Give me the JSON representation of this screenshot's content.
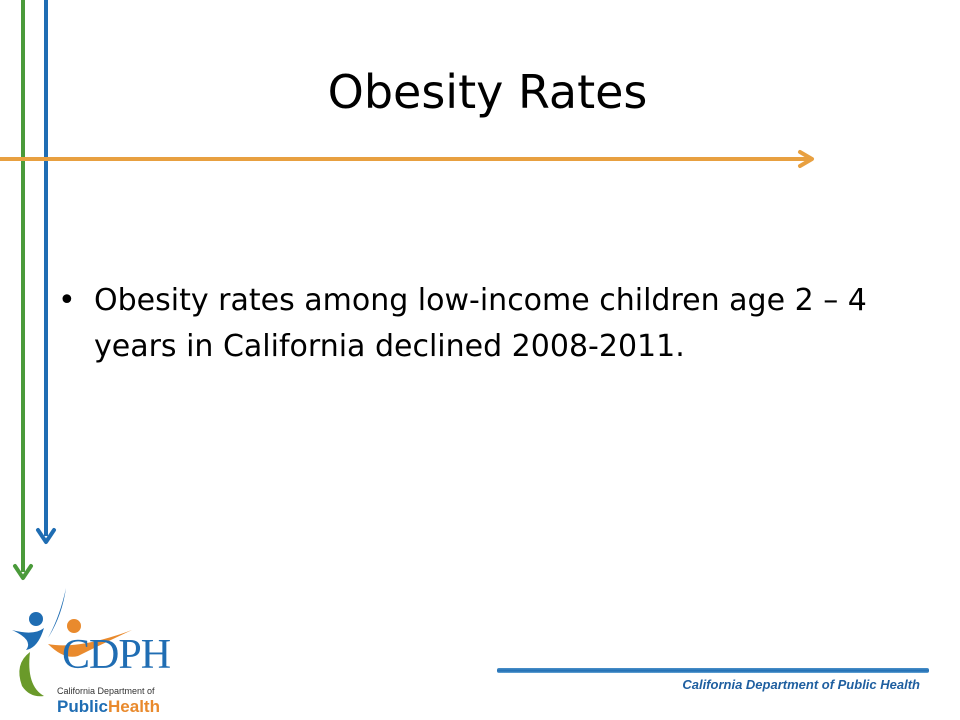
{
  "slide": {
    "title": "Obesity Rates",
    "bullets": [
      "Obesity rates among low-income children age 2 – 4 years in California declined 2008-2011."
    ],
    "bullet_symbol": "•"
  },
  "footer": {
    "org_name": "California Department of Public Health"
  },
  "logo": {
    "acronym": "CDPH",
    "subtitle": "California Department of",
    "word_public": "Public",
    "word_health": "Health"
  },
  "colors": {
    "green_arrow": "#4a9a3a",
    "blue_arrow": "#1f6db3",
    "orange_arrow": "#e8a040",
    "footer_text": "#1f5fa0"
  }
}
